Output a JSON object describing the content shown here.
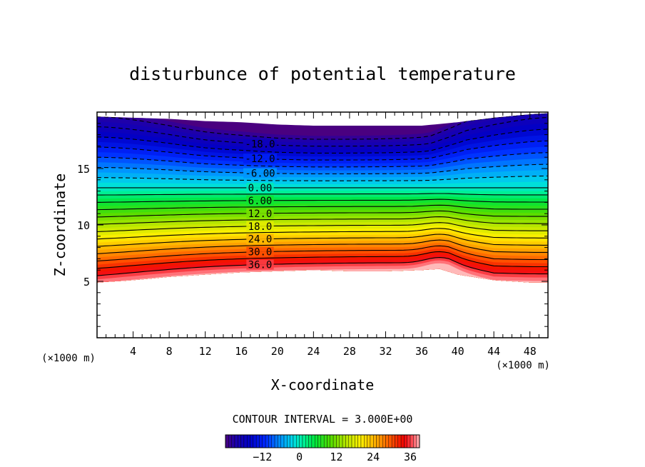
{
  "chart_data": {
    "type": "contour",
    "title": "disturbunce of potential temperature",
    "xlabel": "X-coordinate",
    "ylabel": "Z-coordinate",
    "x_unit_label": "(×1000 m)",
    "y_unit_label": "(×1000 m)",
    "xlim": [
      0,
      50
    ],
    "ylim": [
      0,
      20
    ],
    "xticks": [
      4,
      8,
      12,
      16,
      20,
      24,
      28,
      32,
      36,
      40,
      44,
      48
    ],
    "yticks": [
      5,
      10,
      15
    ],
    "contour_interval_label": "CONTOUR INTERVAL = 3.000E+00",
    "contour_interval": 3.0,
    "value_range": [
      -24,
      39
    ],
    "contour_labels": [
      {
        "text": "-18.0",
        "value": -18
      },
      {
        "text": "-12.0",
        "value": -12
      },
      {
        "text": "-6.00",
        "value": -6
      },
      {
        "text": "0.00",
        "value": 0
      },
      {
        "text": "6.00",
        "value": 6
      },
      {
        "text": "12.0",
        "value": 12
      },
      {
        "text": "18.0",
        "value": 18
      },
      {
        "text": "24.0",
        "value": 24
      },
      {
        "text": "30.0",
        "value": 30
      },
      {
        "text": "36.0",
        "value": 36
      }
    ],
    "colorbar": {
      "range": [
        -24,
        39
      ],
      "ticks": [
        -12,
        0,
        12,
        24,
        36
      ],
      "tick_labels": [
        "−12",
        "0",
        "12",
        "24",
        "36"
      ]
    },
    "domain_top_km": {
      "x": [
        0,
        4,
        8,
        12,
        16,
        20,
        24,
        28,
        32,
        36,
        40,
        44,
        48,
        50
      ],
      "z": [
        19.6,
        19.5,
        19.4,
        19.2,
        19.1,
        18.9,
        18.8,
        18.8,
        18.8,
        18.8,
        19.1,
        19.5,
        19.8,
        19.9
      ]
    },
    "domain_bottom_km": {
      "x": [
        0,
        4,
        8,
        12,
        16,
        20,
        24,
        28,
        32,
        36,
        38,
        40,
        44,
        48,
        50
      ],
      "z": [
        4.9,
        5.1,
        5.4,
        5.6,
        5.8,
        5.9,
        6.0,
        5.9,
        5.9,
        6.0,
        6.1,
        5.6,
        5.1,
        4.9,
        4.9
      ]
    }
  },
  "colors": {
    "lowest": "#4a0080",
    "highest": "#ffb6b6"
  }
}
